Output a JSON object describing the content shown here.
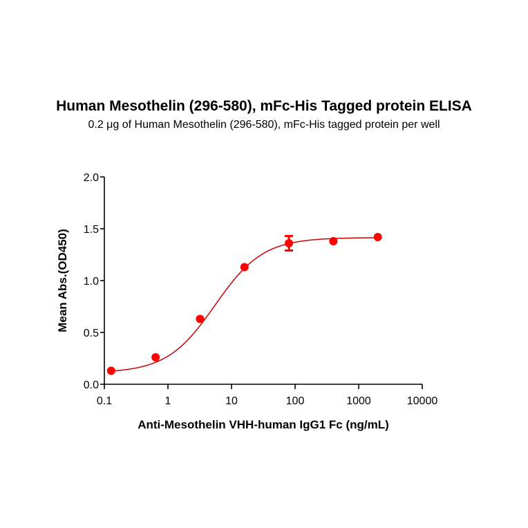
{
  "title": "Human Mesothelin (296-580), mFc-His Tagged protein ELISA",
  "subtitle": "0.2 μg of Human Mesothelin (296-580), mFc-His tagged protein per well",
  "colors": {
    "series": "#ff0000",
    "curve": "#cc0000",
    "axis": "#000000"
  },
  "chart_data": {
    "type": "scatter",
    "title": "Human Mesothelin (296-580), mFc-His Tagged protein ELISA",
    "subtitle": "0.2 μg of Human Mesothelin (296-580), mFc-His tagged protein per well",
    "xlabel": "Anti-Mesothelin VHH-human IgG1 Fc (ng/mL)",
    "ylabel": "Mean Abs.(OD450)",
    "xscale": "log",
    "xlim": [
      0.1,
      10000
    ],
    "ylim": [
      0.0,
      2.0
    ],
    "xticks": [
      "0.1",
      "1",
      "10",
      "100",
      "1000",
      "10000"
    ],
    "yticks": [
      "0.0",
      "0.5",
      "1.0",
      "1.5",
      "2.0"
    ],
    "grid": false,
    "legend": null,
    "series": [
      {
        "name": "Anti-Mesothelin VHH-human IgG1 Fc",
        "x": [
          0.128,
          0.64,
          3.2,
          16,
          80,
          400,
          2000
        ],
        "y": [
          0.13,
          0.26,
          0.63,
          1.13,
          1.36,
          1.38,
          1.42
        ],
        "error": [
          0.01,
          0.01,
          0.01,
          0.01,
          0.07,
          0.01,
          0.01
        ],
        "fit": "4-parameter logistic"
      }
    ]
  }
}
